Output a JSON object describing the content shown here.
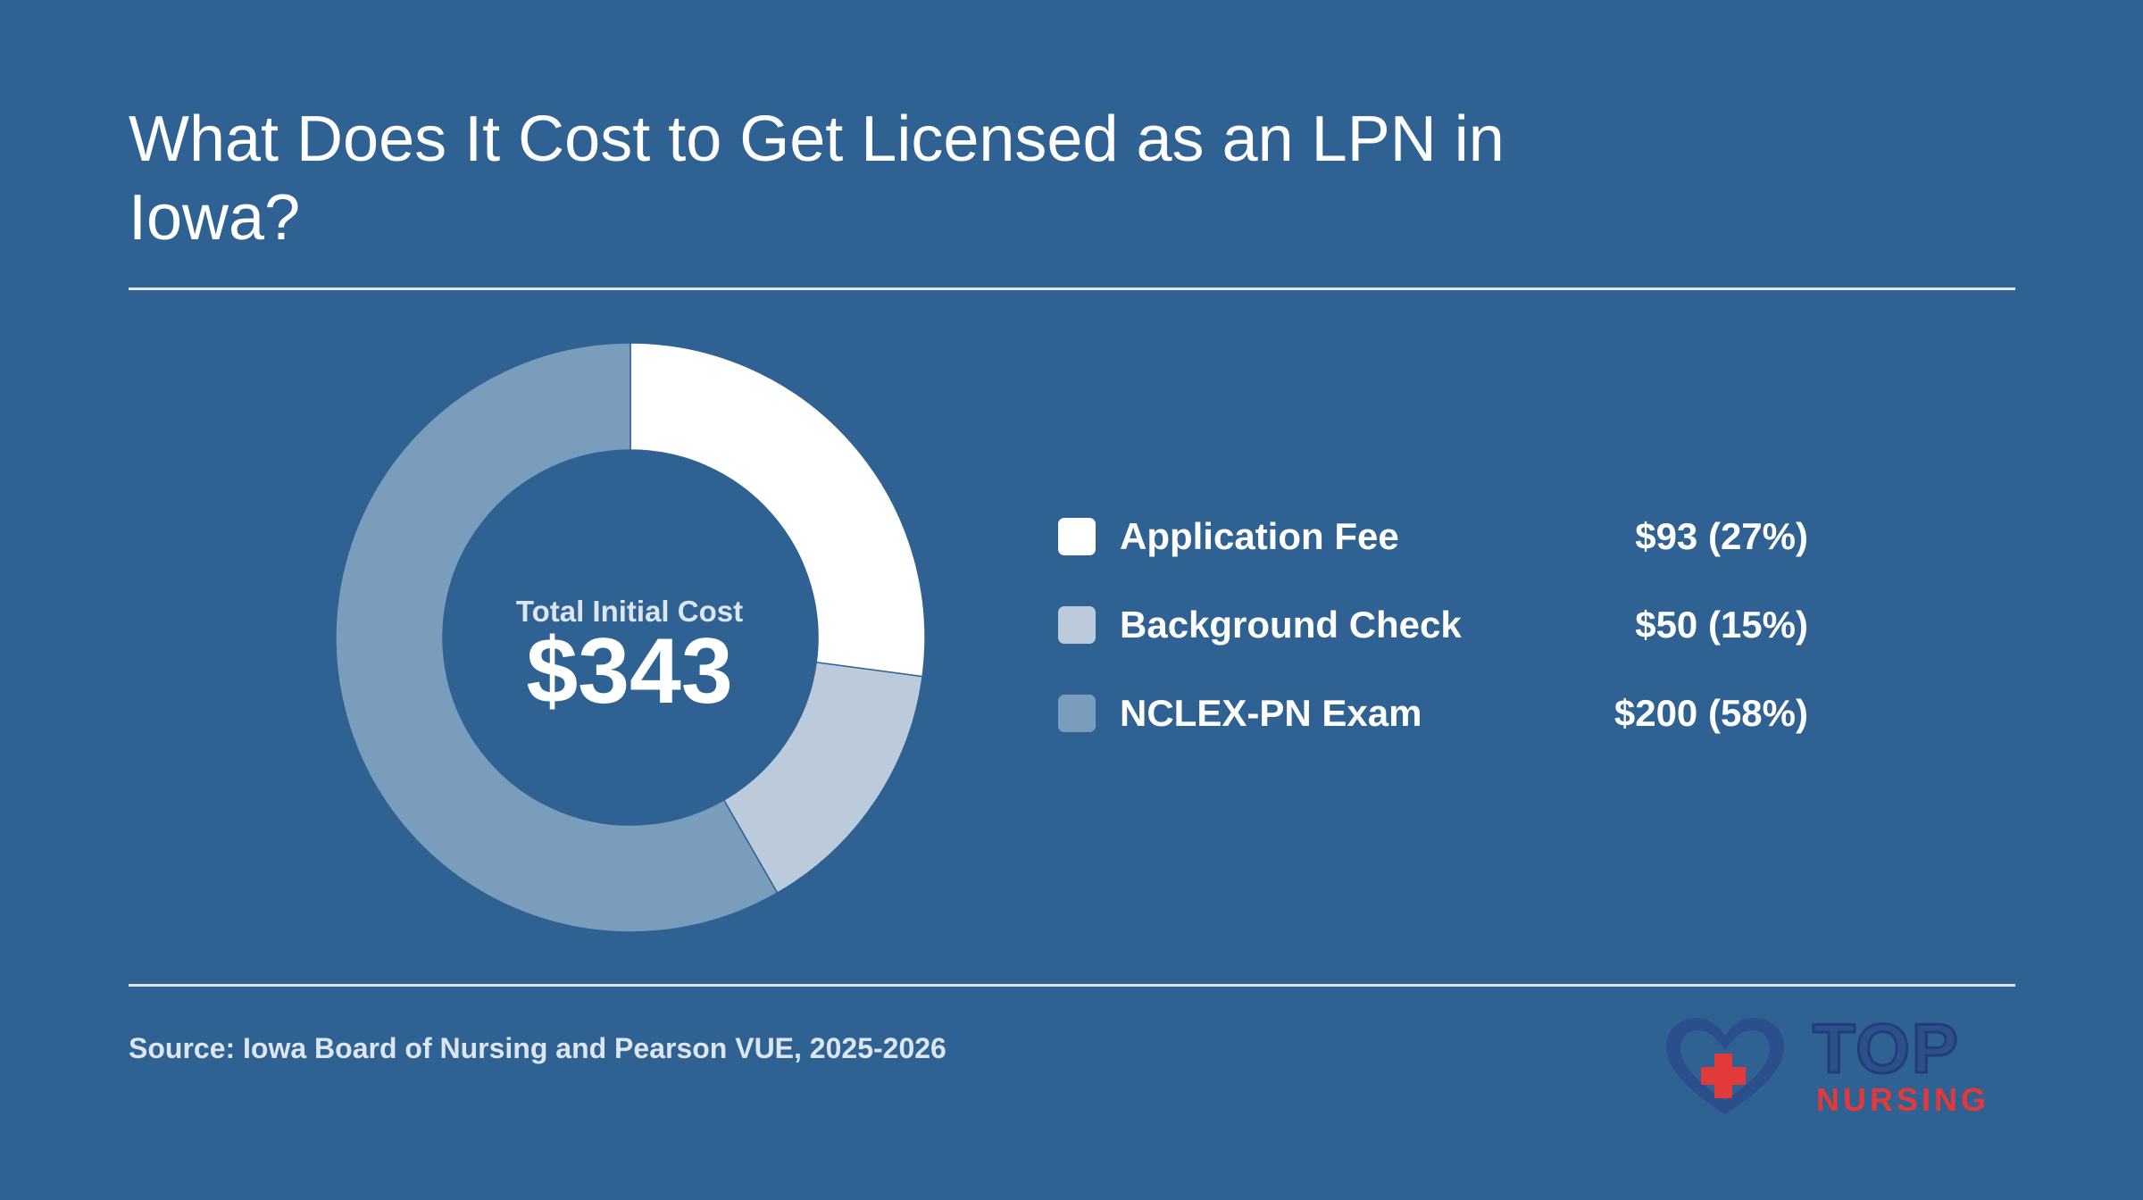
{
  "header": {
    "title": "What Does It Cost to Get Licensed as an LPN in Iowa?"
  },
  "chart_data": {
    "type": "pie",
    "variant": "donut",
    "categories": [
      "Application Fee",
      "Background Check",
      "NCLEX-PN Exam"
    ],
    "values": [
      93,
      50,
      200
    ],
    "value_labels": [
      "$93 (27%)",
      "$50 (15%)",
      "$200 (58%)"
    ],
    "percentages": [
      27,
      15,
      58
    ],
    "colors": [
      "#ffffff",
      "#bccbdc",
      "#7a9dbd"
    ],
    "center_caption": "Total Initial Cost",
    "center_value": "$343",
    "legend_position": "right"
  },
  "footer": {
    "source": "Source: Iowa Board of Nursing and Pearson VUE, 2025-2026"
  },
  "logo": {
    "word_top": "TOP",
    "word_bottom": "NURSING",
    "colors": {
      "navy": "#2d4f8a",
      "red": "#e23a3a"
    },
    "icon": "heart-cross-icon"
  },
  "background_color": "#2f6292"
}
